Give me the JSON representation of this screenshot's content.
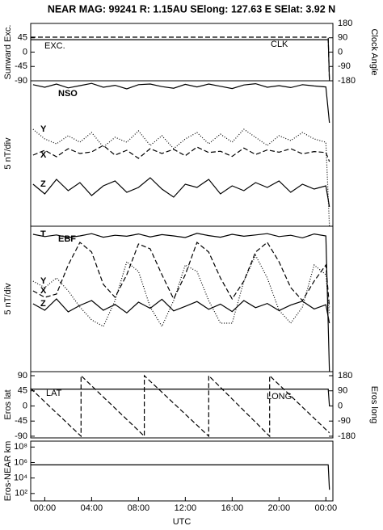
{
  "chart_data": [
    {
      "type": "line",
      "title": "NEAR MAG: 99241  R: 1.15AU  SElong: 127.63 E  SElat:   3.92 N",
      "ylabel": "Sunward Exc.",
      "y2label": "Clock Angle",
      "xlim": [
        -1.2,
        24.6
      ],
      "ylim": [
        -90,
        90
      ],
      "yticks": [
        45,
        0,
        -45,
        -90
      ],
      "y2lim": [
        -180,
        180
      ],
      "y2ticks": [
        180,
        90,
        0,
        -90,
        -180
      ],
      "series": [
        {
          "name": "EXC.",
          "style": "solid",
          "color": "#000000",
          "x": [
            -1.2,
            24.2,
            24.3
          ],
          "values": [
            39,
            39,
            -90
          ]
        },
        {
          "name": "CLK",
          "style": "dashed",
          "color": "#000000",
          "axis": "y2",
          "x": [
            -1.2,
            24.2,
            24.3
          ],
          "values": [
            94,
            94,
            -180
          ]
        }
      ]
    },
    {
      "type": "line",
      "label": "NSO",
      "ylabel": "5 nT/div",
      "xlim": [
        -1.2,
        24.6
      ],
      "ylim": [
        0,
        45
      ],
      "series": [
        {
          "style": "solid",
          "color": "#000000",
          "x": [
            -1,
            0,
            1,
            2,
            3,
            4,
            5,
            6,
            7,
            8,
            9,
            10,
            11,
            12,
            13,
            14,
            15,
            16,
            17,
            18,
            19,
            20,
            21,
            22,
            23,
            24,
            24.3
          ],
          "values": [
            43.8,
            43,
            44,
            42.8,
            43.5,
            44.2,
            43,
            43.6,
            42.5,
            43.8,
            44,
            43.2,
            42.7,
            43.9,
            43.1,
            44,
            43.3,
            42.6,
            43.7,
            44.1,
            43,
            43.5,
            42.9,
            43.8,
            43.4,
            43.1,
            32
          ]
        },
        {
          "name": "Y",
          "style": "dotted",
          "color": "#000000",
          "x": [
            -1,
            0,
            1,
            2,
            3,
            4,
            5,
            6,
            7,
            8,
            9,
            10,
            11,
            12,
            13,
            14,
            15,
            16,
            17,
            18,
            19,
            20,
            21,
            22,
            23,
            24,
            24.3
          ],
          "values": [
            30,
            27,
            25.5,
            28,
            26,
            29,
            24.5,
            27.5,
            26,
            29.5,
            25,
            28,
            24,
            27,
            29,
            25.5,
            28.5,
            26,
            30,
            27.5,
            25,
            28,
            26.5,
            29,
            27,
            26,
            0
          ]
        },
        {
          "name": "X",
          "style": "dashed",
          "color": "#000000",
          "x": [
            -1,
            0,
            1,
            2,
            3,
            4,
            5,
            6,
            7,
            8,
            9,
            10,
            11,
            12,
            13,
            14,
            15,
            16,
            17,
            18,
            19,
            20,
            21,
            22,
            23,
            24,
            24.3
          ],
          "values": [
            22,
            23.5,
            21.5,
            24,
            22.5,
            23,
            25,
            22,
            23.5,
            21,
            24,
            22.5,
            23.8,
            21.8,
            24.5,
            22.8,
            23.2,
            21.6,
            24.2,
            22.2,
            23.6,
            22.9,
            24,
            22.4,
            23.1,
            22.8,
            20
          ]
        },
        {
          "name": "Z",
          "style": "solid",
          "color": "#000000",
          "x": [
            -1,
            0,
            1,
            2,
            3,
            4,
            5,
            6,
            7,
            8,
            9,
            10,
            11,
            12,
            13,
            14,
            15,
            16,
            17,
            18,
            19,
            20,
            21,
            22,
            23,
            24,
            24.3
          ],
          "values": [
            13,
            10,
            14.5,
            11,
            13.5,
            9.5,
            12.5,
            14,
            10.5,
            12,
            15,
            11.5,
            9,
            13,
            12,
            14.5,
            10,
            12.5,
            11,
            13.5,
            12,
            14,
            10.5,
            13,
            11.5,
            12.5,
            6
          ]
        }
      ]
    },
    {
      "type": "line",
      "label": "EBF",
      "ylabel": "5 nT/div",
      "xlim": [
        -1.2,
        24.6
      ],
      "ylim": [
        0,
        45
      ],
      "series": [
        {
          "name": "T",
          "style": "solid",
          "color": "#000000",
          "x": [
            -1,
            0,
            1,
            2,
            3,
            4,
            5,
            6,
            7,
            8,
            9,
            10,
            11,
            12,
            13,
            14,
            15,
            16,
            17,
            18,
            19,
            20,
            21,
            22,
            23,
            24,
            24.3
          ],
          "values": [
            42.5,
            41.8,
            42.3,
            41.5,
            42,
            42.7,
            41.6,
            42.2,
            41.9,
            42.6,
            41.7,
            42.4,
            42,
            41.5,
            42.8,
            42.1,
            41.6,
            42.5,
            41.9,
            42.3,
            42.7,
            41.8,
            42.2,
            41.4,
            42.6,
            42,
            0
          ]
        },
        {
          "name": "X",
          "style": "dashed",
          "color": "#000000",
          "x": [
            -1,
            0,
            1,
            2,
            3,
            4,
            5,
            6,
            7,
            8,
            9,
            10,
            11,
            12,
            13,
            14,
            15,
            16,
            17,
            18,
            19,
            20,
            21,
            22,
            23,
            24,
            24.3
          ],
          "values": [
            25,
            23,
            24,
            33,
            40,
            37,
            27,
            23,
            30,
            39.5,
            38,
            30,
            22.5,
            30,
            40,
            37,
            29,
            22.5,
            28,
            37,
            40,
            34,
            26,
            22,
            28,
            33,
            20
          ]
        },
        {
          "name": "Z",
          "style": "solid",
          "color": "#000000",
          "x": [
            -1,
            0,
            1,
            2,
            3,
            4,
            5,
            6,
            7,
            8,
            9,
            10,
            11,
            12,
            13,
            14,
            15,
            16,
            17,
            18,
            19,
            20,
            21,
            22,
            23,
            24,
            24.3
          ],
          "values": [
            21,
            19,
            22.5,
            18.5,
            20.5,
            22,
            19,
            20.8,
            18.2,
            21.5,
            19.6,
            22.4,
            18.8,
            20.2,
            21.7,
            19.3,
            20.9,
            18.6,
            22,
            19.8,
            21.1,
            18.9,
            20.6,
            21.8,
            19.4,
            20.7,
            15
          ]
        },
        {
          "name": "Y",
          "style": "dotted",
          "color": "#000000",
          "x": [
            -1,
            0,
            1,
            2,
            3,
            4,
            5,
            6,
            7,
            8,
            9,
            10,
            11,
            12,
            13,
            14,
            15,
            16,
            17,
            18,
            19,
            20,
            21,
            22,
            23,
            24,
            24.3
          ],
          "values": [
            28,
            26,
            29,
            25,
            20,
            16,
            14,
            22,
            34,
            31,
            20,
            14,
            22,
            33,
            31,
            22,
            15,
            15,
            28,
            36,
            29,
            19,
            15,
            20,
            33,
            30,
            18
          ]
        }
      ]
    },
    {
      "type": "line",
      "ylabel": "Eros lat",
      "y2label": "Eros long",
      "xlim": [
        -1.2,
        24.6
      ],
      "ylim": [
        -95,
        102
      ],
      "yticks": [
        90,
        45,
        0,
        -45,
        -90
      ],
      "y2lim": [
        -190,
        204
      ],
      "y2ticks": [
        180,
        90,
        0,
        -90,
        -180
      ],
      "series": [
        {
          "name": "LAT",
          "style": "solid",
          "color": "#000000",
          "x": [
            -1.2,
            24.2,
            24.3
          ],
          "values": [
            50,
            50,
            0
          ]
        },
        {
          "name": "LONG",
          "style": "dashed",
          "color": "#000000",
          "axis": "y2",
          "x": [
            -1.2,
            3.1,
            3.1,
            8.5,
            8.5,
            14,
            14,
            19.2,
            19.2,
            24.3
          ],
          "values": [
            104,
            -180,
            180,
            -180,
            180,
            -180,
            180,
            -180,
            180,
            -160
          ]
        }
      ]
    },
    {
      "type": "line",
      "ylabel": "Eros-NEAR km",
      "log": true,
      "xlim": [
        -1.2,
        24.6
      ],
      "ylim": [
        11,
        580000000
      ],
      "yticks": [
        {
          "value": 100000000,
          "label": "10⁸"
        },
        {
          "value": 1000000,
          "label": "10⁶"
        },
        {
          "value": 10000,
          "label": "10⁴"
        },
        {
          "value": 100,
          "label": "10²"
        }
      ],
      "xlabel": "UTC",
      "xticks": [
        {
          "value": 0,
          "label": "00:00"
        },
        {
          "value": 4,
          "label": "04:00"
        },
        {
          "value": 8,
          "label": "08:00"
        },
        {
          "value": 12,
          "label": "12:00"
        },
        {
          "value": 16,
          "label": "16:00"
        },
        {
          "value": 20,
          "label": "20:00"
        },
        {
          "value": 24,
          "label": "00:00"
        }
      ],
      "series": [
        {
          "style": "solid",
          "color": "#000000",
          "x": [
            -1.2,
            24.2,
            24.3
          ],
          "values": [
            500000,
            500000,
            300
          ]
        }
      ]
    }
  ]
}
